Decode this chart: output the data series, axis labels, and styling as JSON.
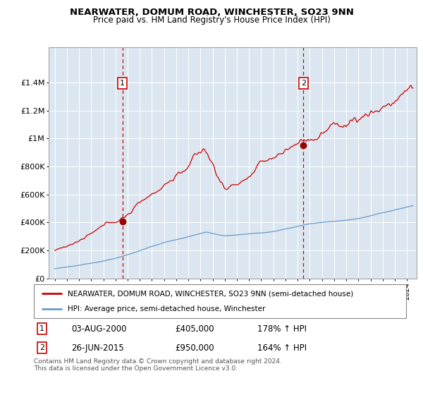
{
  "title": "NEARWATER, DOMUM ROAD, WINCHESTER, SO23 9NN",
  "subtitle": "Price paid vs. HM Land Registry's House Price Index (HPI)",
  "legend_line1": "NEARWATER, DOMUM ROAD, WINCHESTER, SO23 9NN (semi-detached house)",
  "legend_line2": "HPI: Average price, semi-detached house, Winchester",
  "annotation1_label": "1",
  "annotation1_date": "03-AUG-2000",
  "annotation1_price": "£405,000",
  "annotation1_hpi": "178% ↑ HPI",
  "annotation2_label": "2",
  "annotation2_date": "26-JUN-2015",
  "annotation2_price": "£950,000",
  "annotation2_hpi": "164% ↑ HPI",
  "footer": "Contains HM Land Registry data © Crown copyright and database right 2024.\nThis data is licensed under the Open Government Licence v3.0.",
  "sale1_year": 2000.58,
  "sale1_value": 405000,
  "sale2_year": 2015.48,
  "sale2_value": 950000,
  "line_color_red": "#cc0000",
  "line_color_blue": "#6699cc",
  "vline_color": "#cc0000",
  "dot_color_red": "#990000",
  "background_color": "#dce6f0",
  "grid_color": "#ffffff",
  "ylim_max": 1650000,
  "ylim_min": 0,
  "xlim_min": 1994.5,
  "xlim_max": 2024.8,
  "yticks": [
    0,
    200000,
    400000,
    600000,
    800000,
    1000000,
    1200000,
    1400000
  ],
  "ylabels": [
    "£0",
    "£200K",
    "£400K",
    "£600K",
    "£800K",
    "£1M",
    "£1.2M",
    "£1.4M"
  ]
}
